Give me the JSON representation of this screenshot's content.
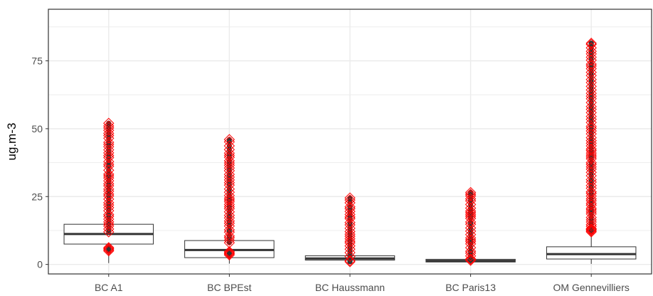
{
  "chart_data": {
    "type": "box",
    "title": "",
    "xlabel": "",
    "ylabel": "ug.m-3",
    "ylim": [
      -3.5,
      94
    ],
    "y_ticks": [
      0,
      25,
      50,
      75
    ],
    "grid": true,
    "colors": {
      "box_outline": "#333333",
      "median": "#333333",
      "outlier_dot": "#333333",
      "outlier_diamond": "#ff0000",
      "grid": "#ebebeb",
      "panel_border": "#333333"
    },
    "categories": [
      "BC A1",
      "BC BPEst",
      "BC Haussmann",
      "BC Paris13",
      "OM Gennevilliers"
    ],
    "boxes": [
      {
        "category": "BC A1",
        "q1": 7.5,
        "median": 11.2,
        "q3": 14.8,
        "whisker_low": 0.5,
        "whisker_high": 25.5
      },
      {
        "category": "BC BPEst",
        "q1": 2.5,
        "median": 5.3,
        "q3": 8.8,
        "whisker_low": 0.3,
        "whisker_high": 18.5
      },
      {
        "category": "BC Haussmann",
        "q1": 1.6,
        "median": 2.2,
        "q3": 3.2,
        "whisker_low": 0.3,
        "whisker_high": 5.5
      },
      {
        "category": "BC Paris13",
        "q1": 0.9,
        "median": 1.3,
        "q3": 1.9,
        "whisker_low": 0.2,
        "whisker_high": 3.0
      },
      {
        "category": "OM Gennevilliers",
        "q1": 2.0,
        "median": 3.8,
        "q3": 6.5,
        "whisker_low": 0.2,
        "whisker_high": 13.0
      }
    ],
    "outlier_ranges": [
      {
        "category": "BC A1",
        "low_min": 5.0,
        "low_max": 6.5,
        "high_min": 12,
        "high_max": 52,
        "max": 52
      },
      {
        "category": "BC BPEst",
        "low_min": 3.5,
        "low_max": 5.0,
        "high_min": 8,
        "high_max": 46,
        "max": 46
      },
      {
        "category": "BC Haussmann",
        "low_min": 1.0,
        "low_max": 1.5,
        "high_min": 3,
        "high_max": 24.5,
        "max": 24.5
      },
      {
        "category": "BC Paris13",
        "low_min": 1.5,
        "low_max": 2.0,
        "high_min": 2,
        "high_max": 26.5,
        "max": 26.5
      },
      {
        "category": "OM Gennevilliers",
        "low_min": 12,
        "low_max": 13.5,
        "high_min": 13,
        "high_max": 81.5,
        "max": 81.5
      }
    ]
  }
}
